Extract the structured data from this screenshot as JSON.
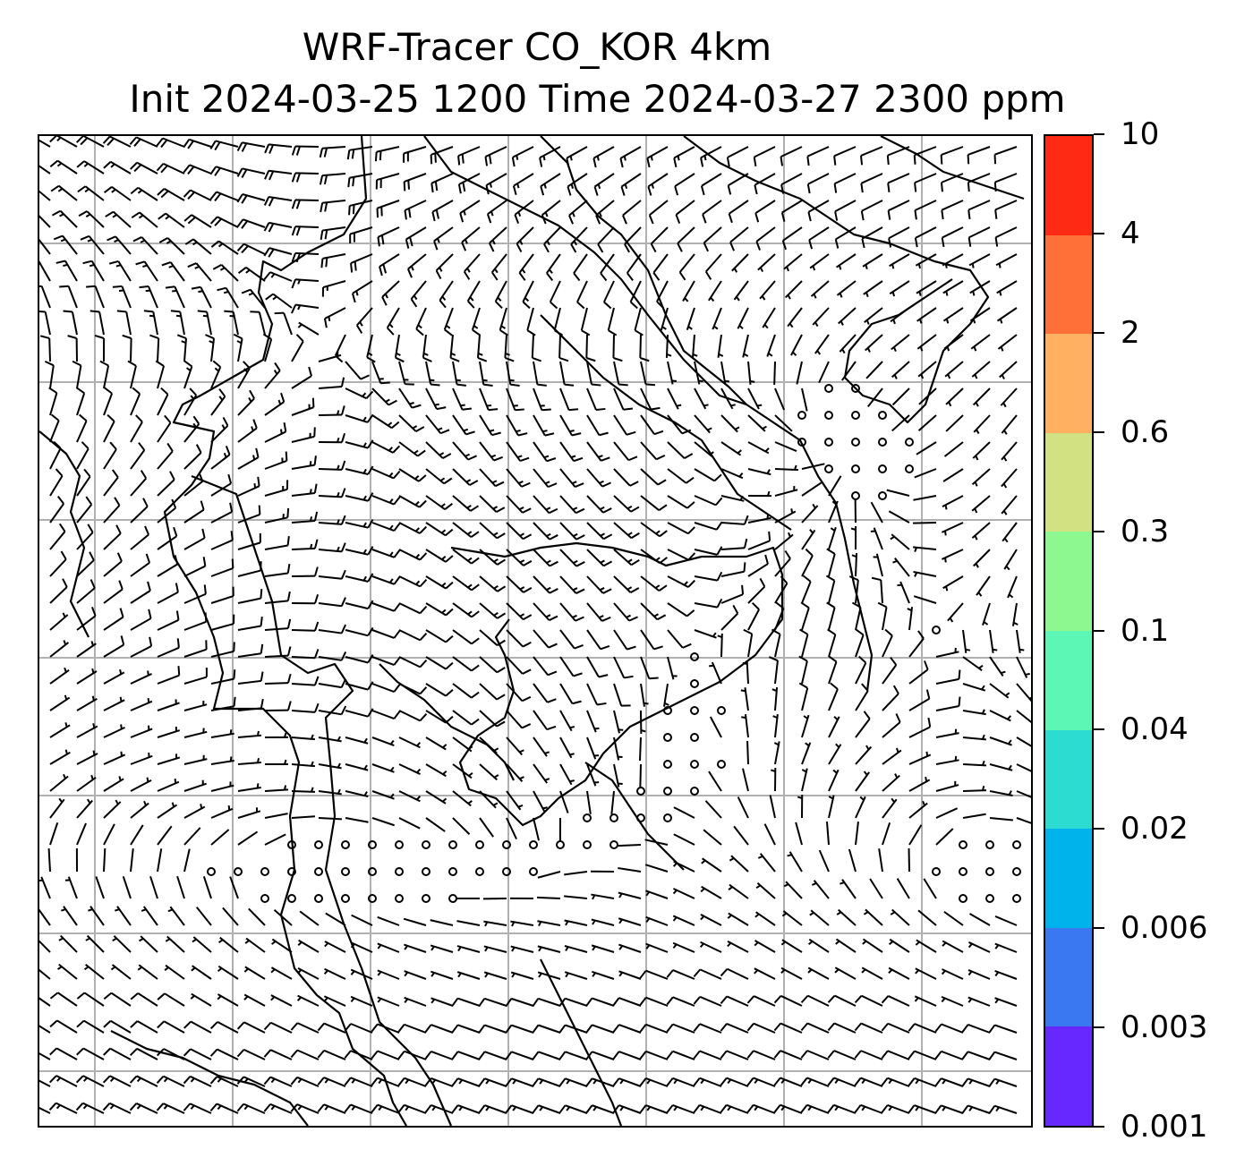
{
  "title": {
    "line1": "WRF-Tracer CO_KOR 4km",
    "line2": "Init 2024-03-25 1200 Time 2024-03-27 2300 ppm"
  },
  "colorbar": {
    "labels": [
      "0.001",
      "0.003",
      "0.006",
      "0.02",
      "0.04",
      "0.1",
      "0.3",
      "0.6",
      "2",
      "4",
      "10"
    ],
    "colors": [
      "#6628ff",
      "#3a78f2",
      "#00b3ea",
      "#2ddcd0",
      "#5cf7b5",
      "#8ef890",
      "#d2e283",
      "#ffb060",
      "#ff7038",
      "#ff2a14"
    ]
  },
  "map": {
    "field": "wind barbs over coastline outline with lat/lon grid",
    "gridlines": true,
    "grid_color": "#b0b0b0",
    "barb_color": "#000000"
  }
}
